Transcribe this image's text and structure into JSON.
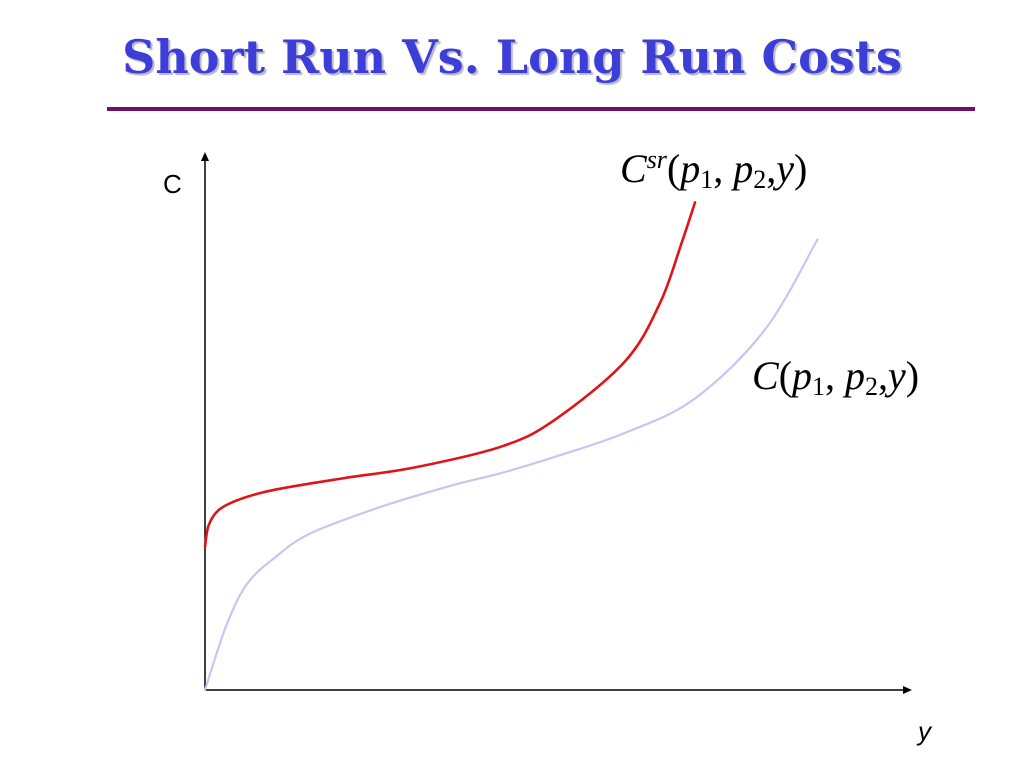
{
  "slide": {
    "title": "Short Run Vs. Long Run Costs"
  },
  "chart_data": {
    "type": "line",
    "title": "Short Run Vs. Long Run Costs",
    "xlabel": "y",
    "ylabel": "C",
    "xlim": [
      0,
      10
    ],
    "ylim": [
      0,
      10
    ],
    "grid": false,
    "series": [
      {
        "key": "short_run",
        "color": "#e01414",
        "label_parts": {
          "main": "C",
          "sup": "sr",
          "open": "(",
          "p": "p",
          "sub1": "1",
          "sep1": ", ",
          "sub2": "2",
          "sep2": ",",
          "y": "y",
          "close": ")"
        },
        "x": [
          0.0,
          0.05,
          0.2,
          0.5,
          1.0,
          2.0,
          3.0,
          4.25,
          5.0,
          6.0,
          6.5,
          6.8,
          7.0
        ],
        "y": [
          2.7,
          3.1,
          3.4,
          3.6,
          3.78,
          4.0,
          4.2,
          4.6,
          5.1,
          6.2,
          7.3,
          8.4,
          9.2
        ]
      },
      {
        "key": "long_run",
        "color": "#c6c6f0",
        "label_parts": {
          "main": "C",
          "open": "(",
          "p": "p",
          "sub1": "1",
          "sep1": ", ",
          "sub2": "2",
          "sep2": ",",
          "y": "y",
          "close": ")"
        },
        "x": [
          0.0,
          0.3,
          0.6,
          1.0,
          1.5,
          2.5,
          3.5,
          4.25,
          5.0,
          6.0,
          7.0,
          8.0,
          8.75
        ],
        "y": [
          0.0,
          1.2,
          2.0,
          2.5,
          2.95,
          3.45,
          3.85,
          4.1,
          4.4,
          4.85,
          5.5,
          6.8,
          8.5
        ]
      }
    ]
  }
}
